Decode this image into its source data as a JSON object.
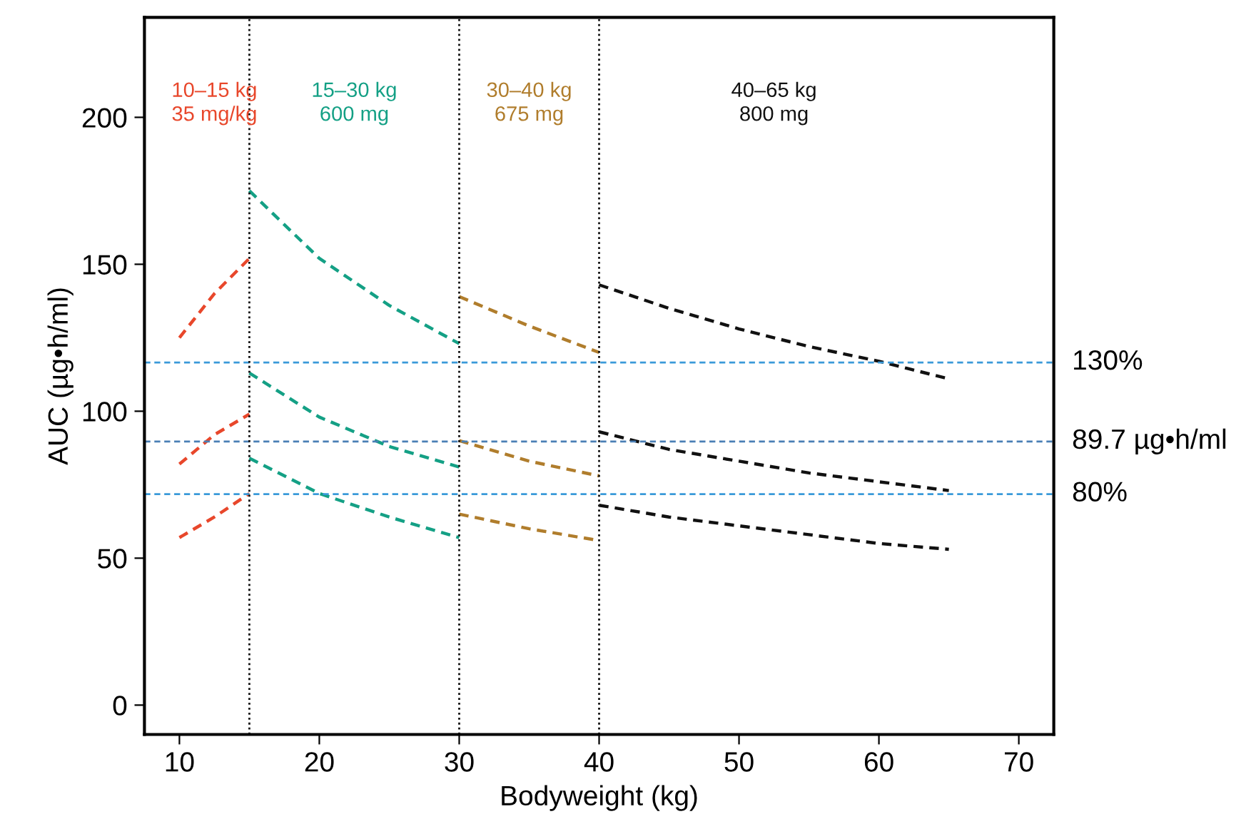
{
  "chart_data": {
    "type": "line",
    "xlabel": "Bodyweight (kg)",
    "ylabel": "AUC (µg•h/ml)",
    "xlim": [
      7.5,
      72.5
    ],
    "ylim": [
      -10,
      234
    ],
    "xticks": [
      10,
      20,
      30,
      40,
      50,
      60,
      70
    ],
    "yticks": [
      0,
      50,
      100,
      150,
      200
    ],
    "annotations": [
      "130%",
      "80%"
    ],
    "grid": false,
    "legend": false,
    "marker": "none",
    "line_style": "dashed",
    "series": [
      {
        "name": "10–15 kg\n35 mg/kg",
        "color": "#e8472b",
        "x": [
          10,
          12.5,
          15,
          null,
          10,
          12.5,
          15,
          null,
          10,
          12.5,
          15
        ],
        "values": [
          125,
          140,
          152,
          null,
          82,
          92,
          99,
          null,
          57,
          64,
          72
        ]
      },
      {
        "name": "15–30 kg\n600 mg",
        "color": "#14a085",
        "x": [
          15,
          20,
          25,
          30,
          null,
          15,
          20,
          25,
          30,
          null,
          15,
          20,
          25,
          30
        ],
        "values": [
          175,
          152,
          136,
          123,
          null,
          113,
          98,
          88,
          81,
          null,
          84,
          72,
          64,
          57
        ]
      },
      {
        "name": "30–40 kg\n675 mg",
        "color": "#b07d2c",
        "x": [
          30,
          35,
          40,
          null,
          30,
          35,
          40,
          null,
          30,
          35,
          40
        ],
        "values": [
          139,
          129,
          120,
          null,
          90,
          83,
          78,
          null,
          65,
          60,
          56
        ]
      },
      {
        "name": "40–65 kg\n800 mg",
        "color": "#111111",
        "x": [
          40,
          45,
          50,
          55,
          60,
          65,
          null,
          40,
          45,
          50,
          55,
          60,
          65,
          null,
          40,
          45,
          50,
          55,
          60,
          65
        ],
        "values": [
          143,
          135,
          128,
          122,
          117,
          111,
          null,
          93,
          87,
          83,
          79,
          76,
          73,
          null,
          68,
          64,
          61,
          58,
          55,
          53
        ]
      }
    ],
    "ref_lines": [
      {
        "axis": "y",
        "value": 116.6,
        "color": "#3a9ad9",
        "line_style": "dashed"
      },
      {
        "axis": "y",
        "value": 89.7,
        "label": "89.7 µg•h/ml",
        "color": "#4a7fb5",
        "line_style": "dashed"
      },
      {
        "axis": "y",
        "value": 71.8,
        "color": "#3a9ad9",
        "line_style": "dashed"
      },
      {
        "axis": "x",
        "value": 15,
        "color": "#111111",
        "line_style": "dotted"
      },
      {
        "axis": "x",
        "value": 30,
        "color": "#111111",
        "line_style": "dotted"
      },
      {
        "axis": "x",
        "value": 40,
        "color": "#111111",
        "line_style": "dotted"
      }
    ]
  }
}
